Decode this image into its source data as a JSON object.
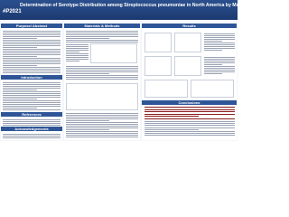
{
  "header": {
    "poster_id": "#P2021",
    "title": "Determination of Serotype Distribution among Streptococcus pneumoniae in North America by Multiplex PCR"
  },
  "sections": {
    "abstract": "Purpose/ Abstract",
    "methods": "Materials & Methods",
    "results": "Results",
    "introduction": "Introduction",
    "references": "References",
    "acknowledgements": "Acknowledgements",
    "conclusions": "Conclusions"
  }
}
